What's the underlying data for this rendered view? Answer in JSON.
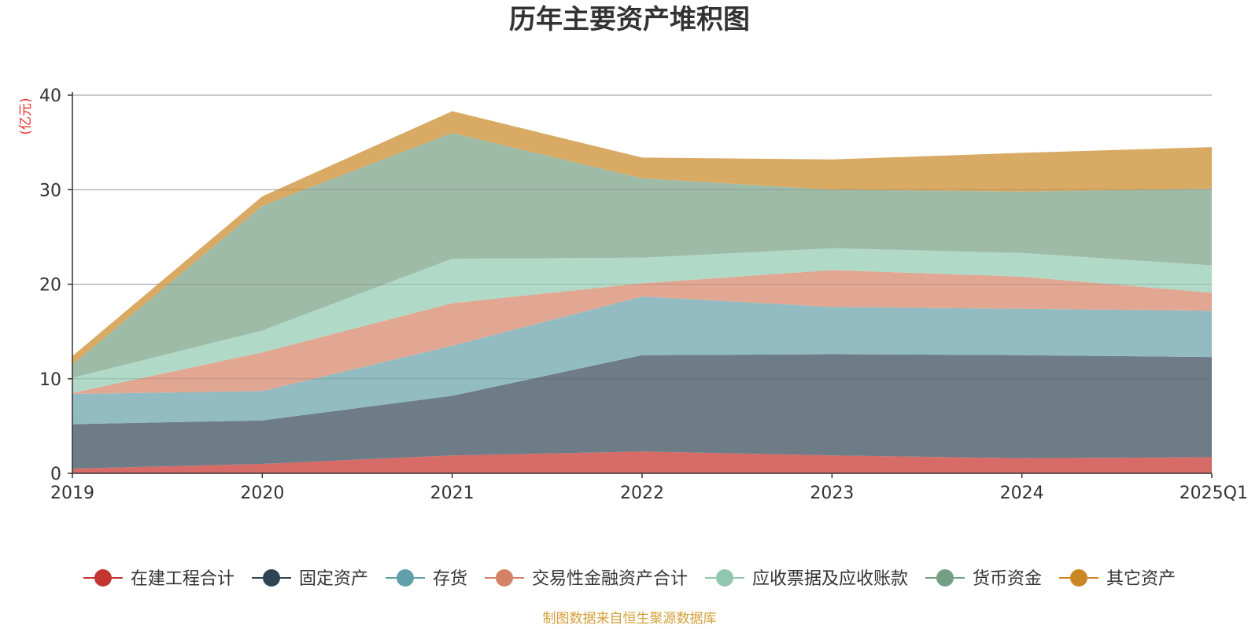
{
  "chart_data": {
    "type": "area",
    "title": "历年主要资产堆积图",
    "unit_label": "(亿元)",
    "source": "制图数据来自恒生聚源数据库",
    "categories": [
      "2019",
      "2020",
      "2021",
      "2022",
      "2023",
      "2024",
      "2025Q1"
    ],
    "ylim": [
      0,
      40
    ],
    "yticks": [
      "0",
      "10",
      "20",
      "30",
      "40"
    ],
    "stacked": true,
    "grid": true,
    "legend_position": "bottom",
    "series": [
      {
        "name": "在建工程合计",
        "color": "#c23531",
        "fill": "#d66b67",
        "values": [
          0.5,
          1.0,
          1.9,
          2.3,
          1.9,
          1.6,
          1.7
        ]
      },
      {
        "name": "固定资产",
        "color": "#2f4554",
        "fill": "#6d7c87",
        "values": [
          4.7,
          4.6,
          6.3,
          10.2,
          10.7,
          10.9,
          10.6
        ]
      },
      {
        "name": "存货",
        "color": "#61a0a8",
        "fill": "#92bcc1",
        "values": [
          3.2,
          3.1,
          5.3,
          6.2,
          5.0,
          4.9,
          4.9
        ]
      },
      {
        "name": "交易性金融资产合计",
        "color": "#d48265",
        "fill": "#e1a792",
        "values": [
          0.1,
          4.1,
          4.5,
          1.4,
          3.9,
          3.4,
          1.9
        ]
      },
      {
        "name": "应收票据及应收账款",
        "color": "#91c7ae",
        "fill": "#b1d9c7",
        "values": [
          1.6,
          2.3,
          4.7,
          2.7,
          2.3,
          2.5,
          2.9
        ]
      },
      {
        "name": "货币资金",
        "color": "#749f83",
        "fill": "#9ebba8",
        "values": [
          1.4,
          13.2,
          13.3,
          8.4,
          6.2,
          6.5,
          8.1
        ]
      },
      {
        "name": "其它资产",
        "color": "#ca8622",
        "fill": "#d9aa63",
        "values": [
          0.9,
          1.0,
          2.3,
          2.2,
          3.2,
          4.1,
          4.4
        ]
      }
    ]
  }
}
